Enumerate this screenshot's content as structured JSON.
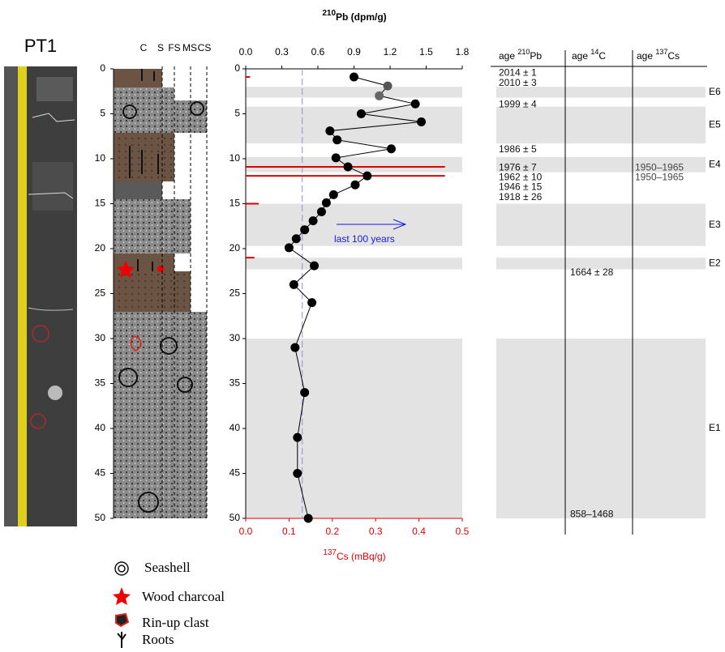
{
  "core": {
    "label": "PT1"
  },
  "log": {
    "grain_sizes": [
      "C",
      "S",
      "FS",
      "MS",
      "CS"
    ]
  },
  "legend": {
    "items": [
      "Seashell",
      "Wood charcoal",
      "Rin-up clast",
      "Roots"
    ]
  },
  "chart_data": {
    "type": "line",
    "title": {
      "sup": "210",
      "text": "Pb (dpm/g)"
    },
    "x2_label": {
      "sup": "137",
      "text": "Cs (mBq/g)"
    },
    "xlim": [
      0,
      1.8
    ],
    "xticks": [
      {
        "value": 0,
        "label": "0.0"
      },
      0.3,
      0.6,
      0.9,
      1.2,
      1.5,
      1.8
    ],
    "x2lim": [
      0,
      0.5
    ],
    "x2ticks": [
      {
        "value": 0,
        "label": "0.0"
      },
      0.1,
      0.2,
      0.3,
      0.4,
      0.5
    ],
    "ylim": [
      0,
      50
    ],
    "yticks": [
      0,
      5,
      10,
      15,
      20,
      25,
      30,
      35,
      40,
      45,
      50
    ],
    "pb": {
      "color": "#000000",
      "depth": [
        0.9,
        1.9,
        3.0,
        3.9,
        5.0,
        5.9,
        6.9,
        7.9,
        8.9,
        9.9,
        10.9,
        11.9,
        12.9,
        14.0,
        14.9,
        15.9,
        16.9,
        17.9,
        18.9,
        19.9,
        21.9,
        24.0,
        26.0,
        31.0,
        36.0,
        41.0,
        45.0,
        50.0
      ],
      "values": [
        0.9,
        1.18,
        1.11,
        1.41,
        0.96,
        1.46,
        0.7,
        0.76,
        1.21,
        0.75,
        0.85,
        1.01,
        0.91,
        0.73,
        0.67,
        0.63,
        0.56,
        0.49,
        0.42,
        0.36,
        0.57,
        0.4,
        0.55,
        0.41,
        0.49,
        0.43,
        0.43,
        0.52
      ],
      "colors": [
        "#000000",
        "#555555",
        "#666666",
        "#000000",
        "#000000",
        "#000000",
        "#000000",
        "#000000",
        "#000000",
        "#000000",
        "#000000",
        "#000000",
        "#000000",
        "#000000",
        "#000000",
        "#000000",
        "#000000",
        "#000000",
        "#000000",
        "#000000",
        "#000000",
        "#000000",
        "#000000",
        "#000000",
        "#000000",
        "#000000",
        "#000000",
        "#000000"
      ]
    },
    "cs": {
      "color": "#e00000",
      "depth": [
        0.9,
        10.9,
        11.9,
        15.0,
        21.0
      ],
      "values": [
        0.01,
        0.46,
        0.46,
        0.03,
        0.02
      ]
    },
    "supported": {
      "value": 0.47,
      "color": "#8890d8"
    },
    "annotation": {
      "text": "last 100 years",
      "color": "#1a1adc"
    },
    "events": [
      {
        "label": "E6",
        "top": 2.0,
        "bottom": 3.2
      },
      {
        "label": "E5",
        "top": 4.2,
        "bottom": 8.3
      },
      {
        "label": "E4",
        "top": 9.8,
        "bottom": 11.5
      },
      {
        "label": "E3",
        "top": 15.0,
        "bottom": 19.7
      },
      {
        "label": "E2",
        "top": 21.0,
        "bottom": 22.3
      },
      {
        "label": "E1",
        "top": 30.0,
        "bottom": 50.0
      }
    ]
  },
  "age_table": {
    "headers": [
      {
        "text": "age ",
        "sup": "210",
        "rest": "Pb"
      },
      {
        "text": "age ",
        "sup": "14",
        "rest": "C"
      },
      {
        "text": "age ",
        "sup": "137",
        "rest": "Cs"
      }
    ],
    "columns": [
      {
        "ages": [
          "2014 ± 1",
          "2010 ± 3",
          "1999 ± 4",
          "1986 ± 5",
          "1976 ± 7",
          "1962 ± 10",
          "1946 ± 15",
          "1918 ± 26"
        ],
        "depths": [
          0.5,
          1.6,
          4.0,
          9.0,
          11.0,
          12.1,
          13.2,
          14.3
        ],
        "color": "#111111"
      },
      {
        "ages": [
          "1664 ± 28",
          "858–1468"
        ],
        "depths": [
          22.7,
          49.6
        ],
        "color": "#111111"
      },
      {
        "ages": [
          "1950–1965",
          "1950–1965"
        ],
        "depths": [
          11.0,
          12.1
        ],
        "color": "#444444"
      }
    ]
  }
}
